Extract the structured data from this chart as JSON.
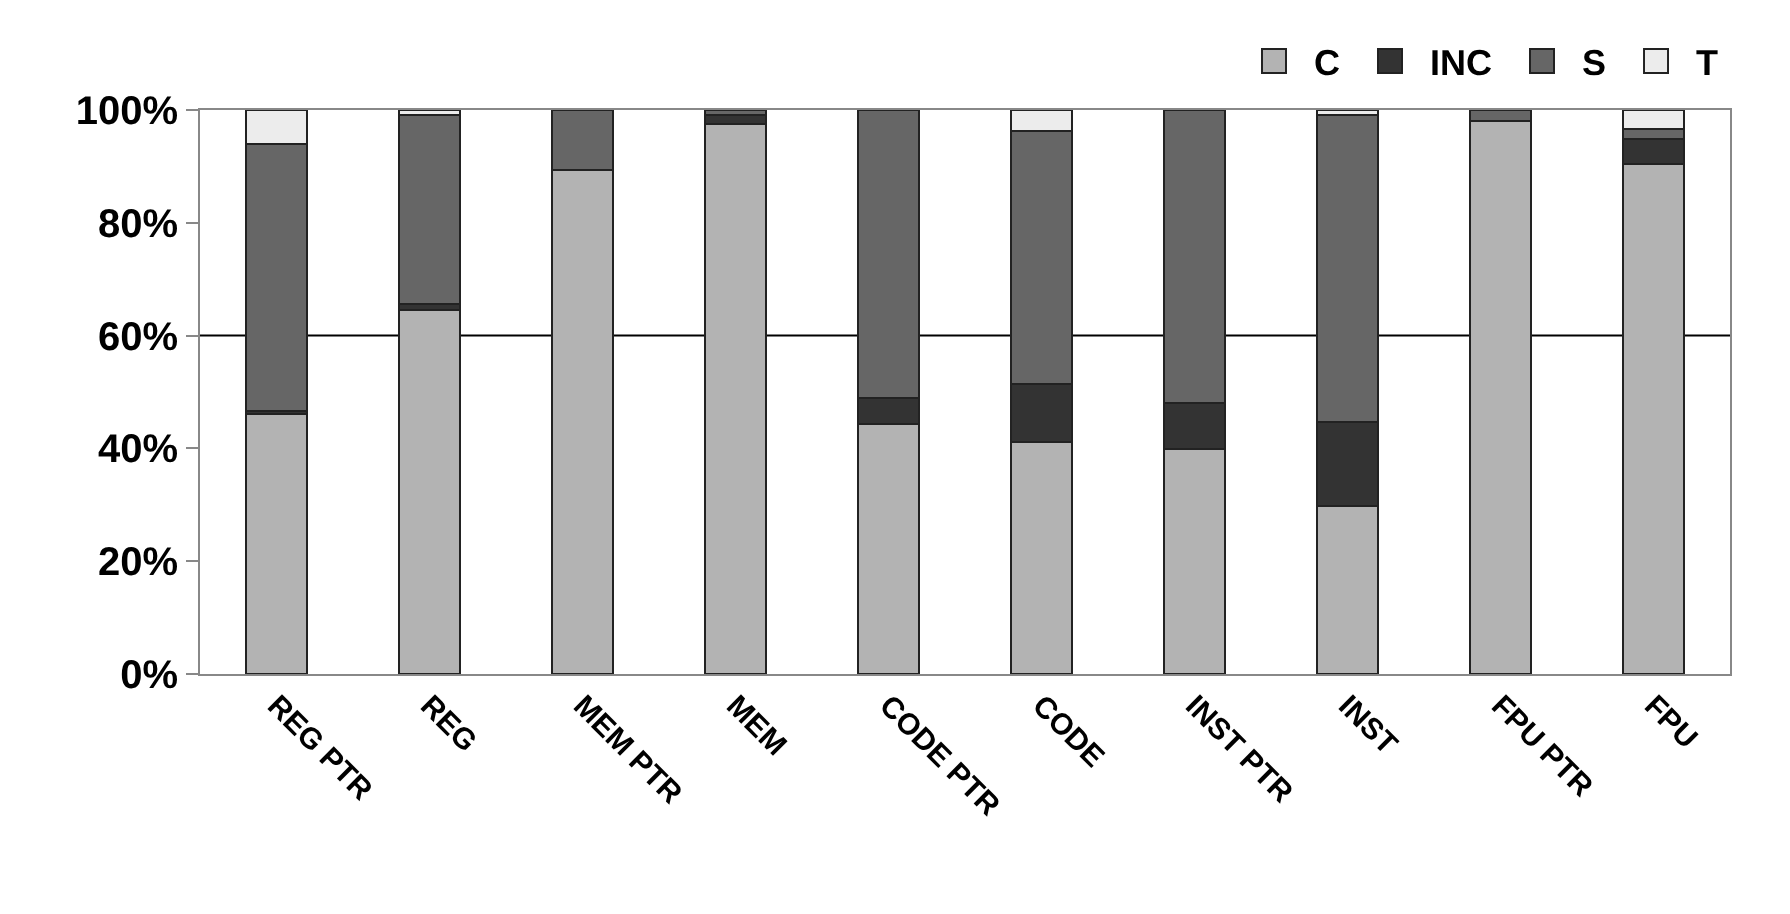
{
  "chart_data": {
    "type": "bar",
    "stacked": true,
    "categories": [
      "REG PTR",
      "REG",
      "MEM PTR",
      "MEM",
      "CODE PTR",
      "CODE",
      "INST PTR",
      "INST",
      "FPU PTR",
      "FPU"
    ],
    "series": [
      {
        "name": "C",
        "color": "#b3b3b3",
        "values": [
          46.1,
          64.6,
          89.3,
          97.6,
          44.4,
          41.2,
          39.9,
          29.8,
          98.1,
          90.4
        ]
      },
      {
        "name": "INC",
        "color": "#333333",
        "values": [
          0.5,
          1.0,
          0,
          1.5,
          4.5,
          10.3,
          8.1,
          14.8,
          0,
          4.5
        ]
      },
      {
        "name": "S",
        "color": "#666666",
        "values": [
          47.4,
          33.5,
          10.7,
          0.9,
          51.1,
          44.7,
          52.0,
          54.5,
          1.9,
          1.7
        ]
      },
      {
        "name": "T",
        "color": "#ececec",
        "values": [
          6.0,
          0.9,
          0,
          0,
          0,
          3.8,
          0,
          0.9,
          0,
          3.4
        ]
      }
    ],
    "ylim": [
      0,
      100
    ],
    "yticks": [
      {
        "value": 0,
        "label": "0%"
      },
      {
        "value": 20,
        "label": "20%"
      },
      {
        "value": 40,
        "label": "40%"
      },
      {
        "value": 60,
        "label": "60%"
      },
      {
        "value": 80,
        "label": "80%"
      },
      {
        "value": 100,
        "label": "100%"
      }
    ],
    "ref_lines": [
      {
        "axis": "y",
        "value": 60,
        "color": "#000000"
      }
    ],
    "grid": false,
    "legend": "top right"
  }
}
